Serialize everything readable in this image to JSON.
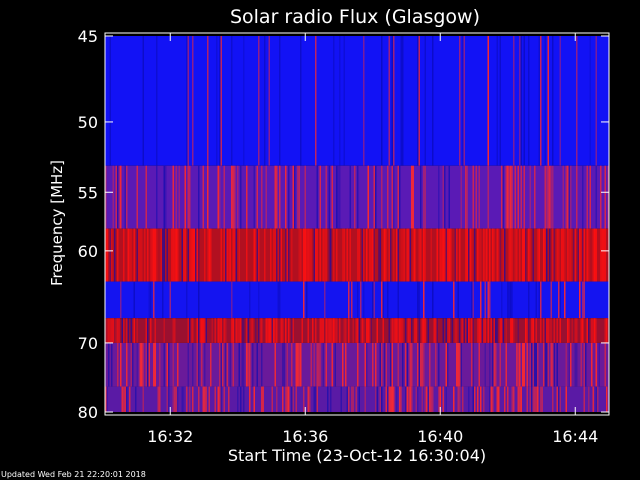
{
  "chart_data": {
    "type": "heatmap",
    "title": "Solar radio Flux (Glasgow)",
    "xlabel": "Start Time (23-Oct-12 16:30:04)",
    "ylabel": "Frequency [MHz]",
    "x_ticks": [
      "16:32",
      "16:36",
      "16:40",
      "16:44"
    ],
    "y_ticks": [
      "45",
      "50",
      "55",
      "60",
      "70",
      "80"
    ],
    "y_axis_scale": "reciprocal",
    "xlim": [
      "16:30:04",
      "16:45:00"
    ],
    "ylim": [
      45,
      80
    ],
    "grid": false,
    "colors": {
      "background": "#000000",
      "low": "#1010ff",
      "mid": "#6a1a9a",
      "high": "#ff0000",
      "text": "#ffffff"
    },
    "bands": [
      {
        "freq_min": 45,
        "freq_max": 53,
        "base_color": "#1212f5",
        "streak_color": "#ff2a2a",
        "streak_density": 0.08
      },
      {
        "freq_min": 53,
        "freq_max": 58,
        "base_color": "#5a1ab5",
        "streak_color": "#ff2a2a",
        "streak_density": 0.25
      },
      {
        "freq_min": 58,
        "freq_max": 63,
        "base_color": "#b21020",
        "streak_color": "#ff1010",
        "streak_density": 0.45
      },
      {
        "freq_min": 63,
        "freq_max": 67,
        "base_color": "#1414f0",
        "streak_color": "#ff2a2a",
        "streak_density": 0.06
      },
      {
        "freq_min": 67,
        "freq_max": 70,
        "base_color": "#9a1030",
        "streak_color": "#ff1010",
        "streak_density": 0.45
      },
      {
        "freq_min": 70,
        "freq_max": 76,
        "base_color": "#6a1a9a",
        "streak_color": "#ff2a2a",
        "streak_density": 0.3
      },
      {
        "freq_min": 76,
        "freq_max": 80,
        "base_color": "#5a1aa5",
        "streak_color": "#ff2a2a",
        "streak_density": 0.3
      }
    ]
  },
  "footer": {
    "updated_text": "Updated Wed Feb 21 22:20:01 2018"
  }
}
